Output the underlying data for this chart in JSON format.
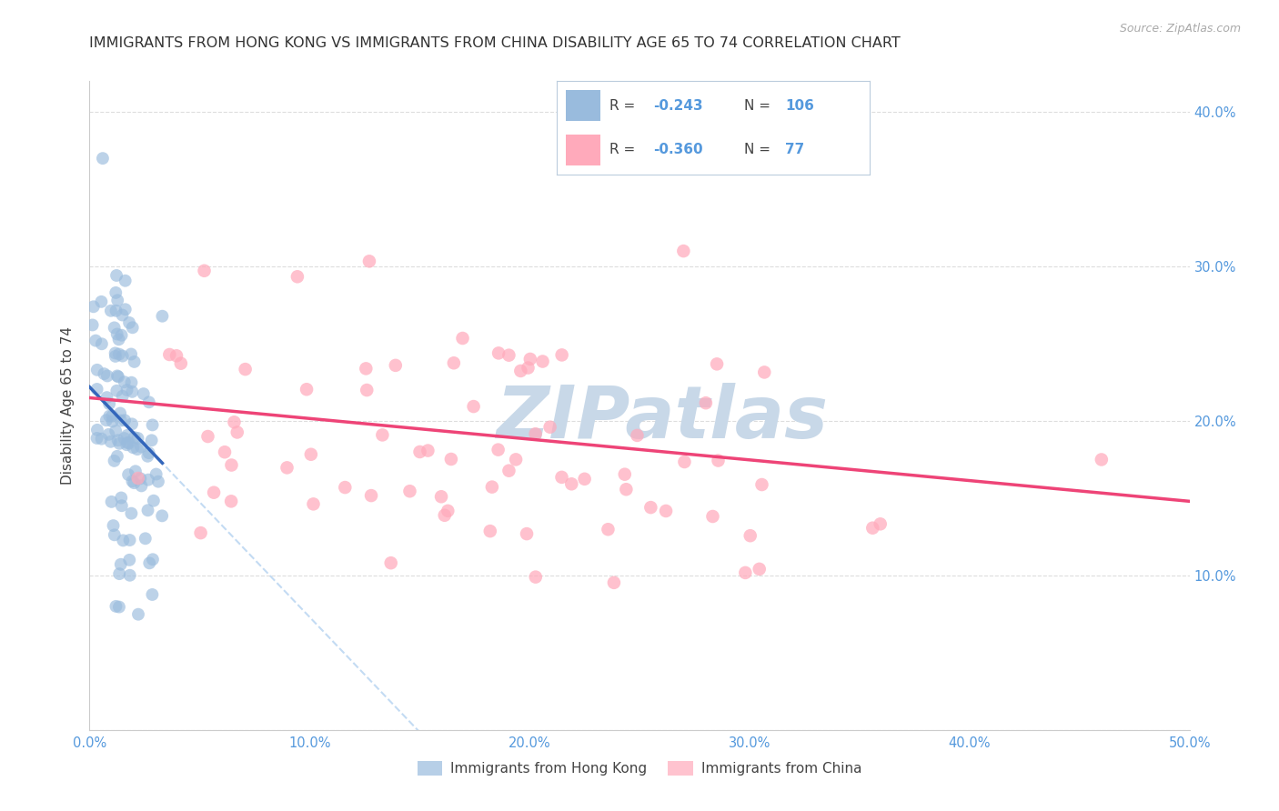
{
  "title": "IMMIGRANTS FROM HONG KONG VS IMMIGRANTS FROM CHINA DISABILITY AGE 65 TO 74 CORRELATION CHART",
  "source": "Source: ZipAtlas.com",
  "ylabel": "Disability Age 65 to 74",
  "xlim": [
    0.0,
    0.5
  ],
  "ylim": [
    0.0,
    0.42
  ],
  "hk_R": -0.243,
  "hk_N": 106,
  "cn_R": -0.36,
  "cn_N": 77,
  "hk_color": "#99BBDD",
  "cn_color": "#FFAABB",
  "hk_line_color": "#3366BB",
  "cn_line_color": "#EE4477",
  "hk_line_dash_color": "#AACCEE",
  "tick_color": "#5599DD",
  "grid_color": "#DDDDDD",
  "background_color": "#FFFFFF",
  "watermark_color": "#C8D8E8",
  "title_fontsize": 11.5,
  "axis_label_fontsize": 11,
  "tick_fontsize": 10.5,
  "legend_R_color": "#5599DD",
  "legend_N_color": "#5599DD",
  "legend_border_color": "#BBCCDD",
  "source_color": "#AAAAAA"
}
